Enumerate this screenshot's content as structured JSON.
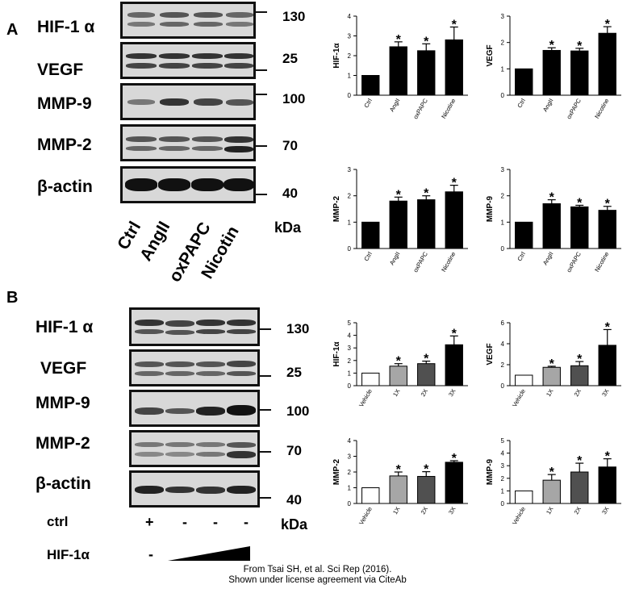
{
  "panels": {
    "a": {
      "letter": "A",
      "blots": [
        {
          "label": "HIF-1 α",
          "mw": "130"
        },
        {
          "label": "VEGF",
          "mw": "25"
        },
        {
          "label": "MMP-9",
          "mw": "100"
        },
        {
          "label": "MMP-2",
          "mw": "70"
        },
        {
          "label": "β-actin",
          "mw": "40"
        }
      ],
      "lanes": [
        "Ctrl",
        "AngII",
        "oxPAPC",
        "Nicotin"
      ],
      "kda": "kDa"
    },
    "b": {
      "letter": "B",
      "blots": [
        {
          "label": "HIF-1 α",
          "mw": "130"
        },
        {
          "label": "VEGF",
          "mw": "25"
        },
        {
          "label": "MMP-9",
          "mw": "100"
        },
        {
          "label": "MMP-2",
          "mw": "70"
        },
        {
          "label": "β-actin",
          "mw": "40"
        }
      ],
      "ctrl_label": "ctrl",
      "ctrl_signs": [
        "+",
        "-",
        "-",
        "-"
      ],
      "hif_label": "HIF-1α",
      "hif_sign": "-",
      "kda": "kDa"
    }
  },
  "credit": {
    "line1": "From Tsai SH, et al. Sci Rep (2016).",
    "line2": "Shown under license agreement via CiteAb"
  },
  "colors": {
    "black_bar": "#000000",
    "white_bar": "#ffffff",
    "light_gray": "#a6a6a6",
    "dark_gray": "#505050"
  },
  "chart_data": [
    {
      "type": "bar",
      "ylabel": "HIF-1α",
      "categories": [
        "Ctrl",
        "AngII",
        "oxPAPC",
        "Nicotine"
      ],
      "values": [
        1.0,
        2.45,
        2.25,
        2.8
      ],
      "errors": [
        0,
        0.25,
        0.35,
        0.65
      ],
      "ylim": [
        0,
        4
      ],
      "yticks": [
        0,
        1,
        2,
        3,
        4
      ],
      "significance": [
        "",
        "*",
        "*",
        "*"
      ],
      "fills": [
        "#000000",
        "#000000",
        "#000000",
        "#000000"
      ]
    },
    {
      "type": "bar",
      "ylabel": "VEGF",
      "categories": [
        "Ctrl",
        "AngII",
        "oxPAPC",
        "Nicotine"
      ],
      "values": [
        1.0,
        1.7,
        1.68,
        2.35
      ],
      "errors": [
        0,
        0.1,
        0.1,
        0.25
      ],
      "ylim": [
        0,
        3
      ],
      "yticks": [
        0,
        1,
        2,
        3
      ],
      "significance": [
        "",
        "*",
        "*",
        "*"
      ],
      "fills": [
        "#000000",
        "#000000",
        "#000000",
        "#000000"
      ]
    },
    {
      "type": "bar",
      "ylabel": "MMP-2",
      "categories": [
        "Ctrl",
        "AngII",
        "oxPAPC",
        "Nicotine"
      ],
      "values": [
        1.0,
        1.8,
        1.85,
        2.15
      ],
      "errors": [
        0,
        0.15,
        0.15,
        0.25
      ],
      "ylim": [
        0,
        3
      ],
      "yticks": [
        0,
        1,
        2,
        3
      ],
      "significance": [
        "",
        "*",
        "*",
        "*"
      ],
      "fills": [
        "#000000",
        "#000000",
        "#000000",
        "#000000"
      ]
    },
    {
      "type": "bar",
      "ylabel": "MMP-9",
      "categories": [
        "Ctrl",
        "AngII",
        "oxPAPC",
        "Nicotine"
      ],
      "values": [
        1.0,
        1.7,
        1.58,
        1.45
      ],
      "errors": [
        0,
        0.15,
        0.06,
        0.15
      ],
      "ylim": [
        0,
        3
      ],
      "yticks": [
        0,
        1,
        2,
        3
      ],
      "significance": [
        "",
        "*",
        "*",
        "*"
      ],
      "fills": [
        "#000000",
        "#000000",
        "#000000",
        "#000000"
      ]
    },
    {
      "type": "bar",
      "ylabel": "HIF-1α",
      "categories": [
        "Vehicle",
        "1X",
        "2X",
        "3X"
      ],
      "values": [
        1.0,
        1.55,
        1.75,
        3.25
      ],
      "errors": [
        0,
        0.2,
        0.2,
        0.7
      ],
      "ylim": [
        0,
        5
      ],
      "yticks": [
        0,
        1,
        2,
        3,
        4,
        5
      ],
      "significance": [
        "",
        "*",
        "*",
        "*"
      ],
      "fills": [
        "#ffffff",
        "#a6a6a6",
        "#505050",
        "#000000"
      ]
    },
    {
      "type": "bar",
      "ylabel": "VEGF",
      "categories": [
        "Vehicle",
        "1X",
        "2X",
        "3X"
      ],
      "values": [
        1.0,
        1.75,
        1.9,
        3.85
      ],
      "errors": [
        0,
        0.1,
        0.4,
        1.5
      ],
      "ylim": [
        0,
        6
      ],
      "yticks": [
        0,
        2,
        4,
        6
      ],
      "significance": [
        "",
        "*",
        "*",
        "*"
      ],
      "fills": [
        "#ffffff",
        "#a6a6a6",
        "#505050",
        "#000000"
      ]
    },
    {
      "type": "bar",
      "ylabel": "MMP-2",
      "categories": [
        "Vehicle",
        "1X",
        "2X",
        "3X"
      ],
      "values": [
        1.0,
        1.75,
        1.72,
        2.62
      ],
      "errors": [
        0,
        0.25,
        0.3,
        0.1
      ],
      "ylim": [
        0,
        4
      ],
      "yticks": [
        0,
        1,
        2,
        3,
        4
      ],
      "significance": [
        "",
        "*",
        "*",
        "*"
      ],
      "fills": [
        "#ffffff",
        "#a6a6a6",
        "#505050",
        "#000000"
      ]
    },
    {
      "type": "bar",
      "ylabel": "MMP-9",
      "categories": [
        "Vehicle",
        "1X",
        "2X",
        "3X"
      ],
      "values": [
        1.0,
        1.85,
        2.5,
        2.9
      ],
      "errors": [
        0,
        0.45,
        0.7,
        0.65
      ],
      "ylim": [
        0,
        5
      ],
      "yticks": [
        0,
        1,
        2,
        3,
        4,
        5
      ],
      "significance": [
        "",
        "*",
        "*",
        "*"
      ],
      "fills": [
        "#ffffff",
        "#a6a6a6",
        "#505050",
        "#000000"
      ]
    }
  ]
}
